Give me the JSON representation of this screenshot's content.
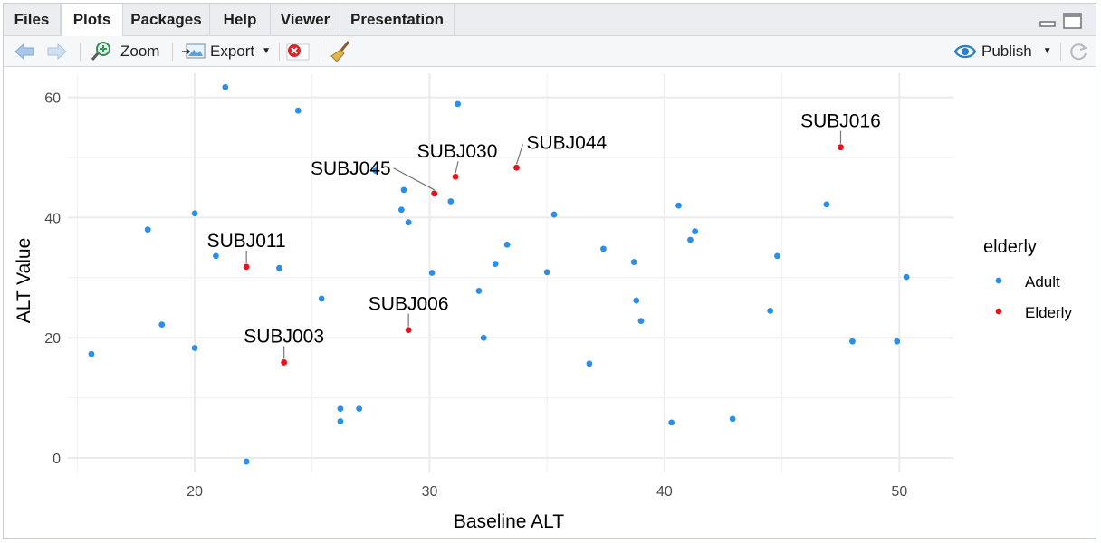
{
  "tabs": [
    {
      "label": "Files",
      "active": false
    },
    {
      "label": "Plots",
      "active": true
    },
    {
      "label": "Packages",
      "active": false
    },
    {
      "label": "Help",
      "active": false
    },
    {
      "label": "Viewer",
      "active": false
    },
    {
      "label": "Presentation",
      "active": false
    }
  ],
  "toolbar": {
    "zoom_label": "Zoom",
    "export_label": "Export",
    "publish_label": "Publish",
    "icons": [
      "back-arrow-icon",
      "forward-arrow-icon",
      "zoom-icon",
      "export-icon",
      "remove-plot-icon",
      "broom-icon",
      "publish-icon",
      "refresh-icon"
    ]
  },
  "colors": {
    "adult": "#2a8fe8",
    "elderly": "#e8121c",
    "grid": "#ebebeb",
    "label": "#000000"
  },
  "chart_data": {
    "type": "scatter",
    "xlabel": "Baseline ALT",
    "ylabel": "ALT Value",
    "xlim": [
      14.6,
      52.3
    ],
    "ylim": [
      -2.4,
      64
    ],
    "x_ticks": [
      20,
      30,
      40,
      50
    ],
    "y_ticks": [
      0,
      20,
      40,
      60
    ],
    "legend": {
      "title": "elderly",
      "entries": [
        "Adult",
        "Elderly"
      ],
      "position": "right"
    },
    "series": [
      {
        "name": "Adult",
        "points": [
          [
            15.6,
            17.3
          ],
          [
            18.0,
            38.0
          ],
          [
            18.6,
            22.2
          ],
          [
            20.0,
            40.7
          ],
          [
            20.0,
            18.3
          ],
          [
            20.9,
            33.6
          ],
          [
            21.3,
            61.7
          ],
          [
            22.2,
            -0.6
          ],
          [
            23.6,
            31.6
          ],
          [
            24.4,
            57.8
          ],
          [
            25.4,
            26.5
          ],
          [
            26.2,
            8.2
          ],
          [
            26.2,
            6.1
          ],
          [
            27.0,
            8.2
          ],
          [
            27.7,
            47.8
          ],
          [
            28.9,
            44.6
          ],
          [
            28.8,
            41.3
          ],
          [
            29.1,
            39.2
          ],
          [
            30.1,
            30.8
          ],
          [
            30.9,
            42.7
          ],
          [
            31.2,
            58.9
          ],
          [
            32.1,
            27.8
          ],
          [
            32.3,
            20.0
          ],
          [
            32.8,
            32.3
          ],
          [
            33.3,
            35.5
          ],
          [
            35.0,
            30.9
          ],
          [
            35.3,
            40.5
          ],
          [
            36.8,
            15.7
          ],
          [
            37.4,
            34.8
          ],
          [
            38.7,
            32.6
          ],
          [
            38.8,
            26.2
          ],
          [
            39.0,
            22.8
          ],
          [
            40.3,
            5.9
          ],
          [
            40.6,
            42.0
          ],
          [
            41.1,
            36.3
          ],
          [
            41.3,
            37.7
          ],
          [
            42.9,
            6.5
          ],
          [
            44.5,
            24.5
          ],
          [
            44.8,
            33.6
          ],
          [
            46.9,
            42.2
          ],
          [
            48.0,
            19.4
          ],
          [
            49.9,
            19.4
          ],
          [
            50.3,
            30.1
          ]
        ]
      },
      {
        "name": "Elderly",
        "points": [
          [
            22.2,
            31.8
          ],
          [
            23.8,
            15.9
          ],
          [
            29.1,
            21.3
          ],
          [
            30.2,
            44.0
          ],
          [
            31.1,
            46.8
          ],
          [
            33.7,
            48.3
          ],
          [
            47.5,
            51.7
          ]
        ]
      }
    ],
    "annotations": [
      {
        "text": "SUBJ011",
        "x": 22.2,
        "y": 31.8
      },
      {
        "text": "SUBJ003",
        "x": 23.8,
        "y": 15.9
      },
      {
        "text": "SUBJ006",
        "x": 29.1,
        "y": 21.3
      },
      {
        "text": "SUBJ045",
        "x": 30.2,
        "y": 44.0
      },
      {
        "text": "SUBJ030",
        "x": 31.1,
        "y": 46.8
      },
      {
        "text": "SUBJ044",
        "x": 33.7,
        "y": 48.3
      },
      {
        "text": "SUBJ016",
        "x": 47.5,
        "y": 51.7
      }
    ]
  }
}
